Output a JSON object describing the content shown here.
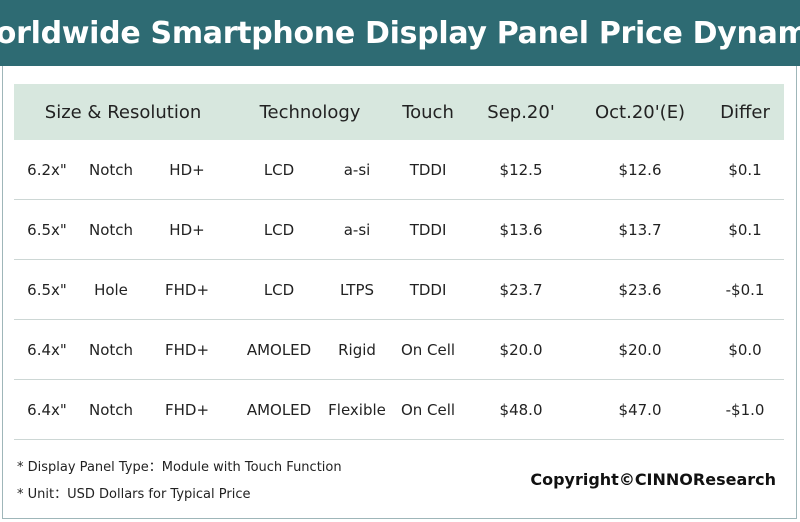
{
  "title": "Worldwide Smartphone Display Panel Price Dynamic",
  "colors": {
    "title_bg": "#2e6b73",
    "header_bg": "#d7e7de",
    "row_border": "#cdd7d5"
  },
  "chart_data": {
    "type": "table",
    "title": "Worldwide Smartphone Display Panel Price Dynamic",
    "headers": [
      {
        "label": "Size & Resolution",
        "span": 3
      },
      {
        "label": "Technology",
        "span": 2
      },
      {
        "label": "Touch",
        "span": 1
      },
      {
        "label": "Sep.20'",
        "span": 1
      },
      {
        "label": "Oct.20'(E)",
        "span": 1
      },
      {
        "label": "Differ",
        "span": 1
      }
    ],
    "rows": [
      [
        "6.2x\"",
        "Notch",
        "HD+",
        "LCD",
        "a-si",
        "TDDI",
        "$12.5",
        "$12.6",
        "$0.1"
      ],
      [
        "6.5x\"",
        "Notch",
        "HD+",
        "LCD",
        "a-si",
        "TDDI",
        "$13.6",
        "$13.7",
        "$0.1"
      ],
      [
        "6.5x\"",
        "Hole",
        "FHD+",
        "LCD",
        "LTPS",
        "TDDI",
        "$23.7",
        "$23.6",
        "-$0.1"
      ],
      [
        "6.4x\"",
        "Notch",
        "FHD+",
        "AMOLED",
        "Rigid",
        "On Cell",
        "$20.0",
        "$20.0",
        "$0.0"
      ],
      [
        "6.4x\"",
        "Notch",
        "FHD+",
        "AMOLED",
        "Flexible",
        "On Cell",
        "$48.0",
        "$47.0",
        "-$1.0"
      ]
    ]
  },
  "notes": [
    "* Display Panel Type：Module with Touch Function",
    "* Unit：USD Dollars for Typical Price"
  ],
  "copyright": "Copyright©CINNOResearch"
}
